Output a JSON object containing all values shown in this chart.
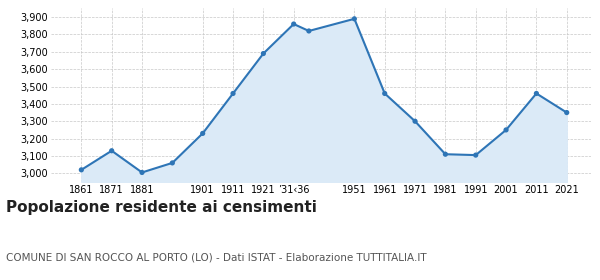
{
  "x_positions": [
    1861,
    1871,
    1881,
    1891,
    1901,
    1911,
    1921,
    1931,
    1936,
    1951,
    1961,
    1971,
    1981,
    1991,
    2001,
    2011,
    2021
  ],
  "y_values": [
    3020,
    3130,
    3005,
    3060,
    3230,
    3460,
    3690,
    3860,
    3820,
    3890,
    3460,
    3300,
    3110,
    3105,
    3250,
    3460,
    3350
  ],
  "x_tick_positions": [
    1861,
    1871,
    1881,
    1901,
    1911,
    1921,
    1931,
    1951,
    1961,
    1971,
    1981,
    1991,
    2001,
    2011,
    2021
  ],
  "x_tick_labels": [
    "1861",
    "1871",
    "1881",
    "1901",
    "1911",
    "1921",
    "’31‹36",
    "1951",
    "1961",
    "1971",
    "1981",
    "1991",
    "2001",
    "2011",
    "2021"
  ],
  "ylim": [
    2950,
    3950
  ],
  "yticks": [
    3000,
    3100,
    3200,
    3300,
    3400,
    3500,
    3600,
    3700,
    3800,
    3900
  ],
  "xlim": [
    1851,
    2029
  ],
  "line_color": "#2e75b6",
  "fill_color": "#dbeaf7",
  "marker_color": "#2e75b6",
  "grid_color": "#c8c8c8",
  "bg_color": "#ffffff",
  "title": "Popolazione residente ai censimenti",
  "subtitle": "COMUNE DI SAN ROCCO AL PORTO (LO) - Dati ISTAT - Elaborazione TUTTITALIA.IT",
  "title_fontsize": 11,
  "subtitle_fontsize": 7.5
}
